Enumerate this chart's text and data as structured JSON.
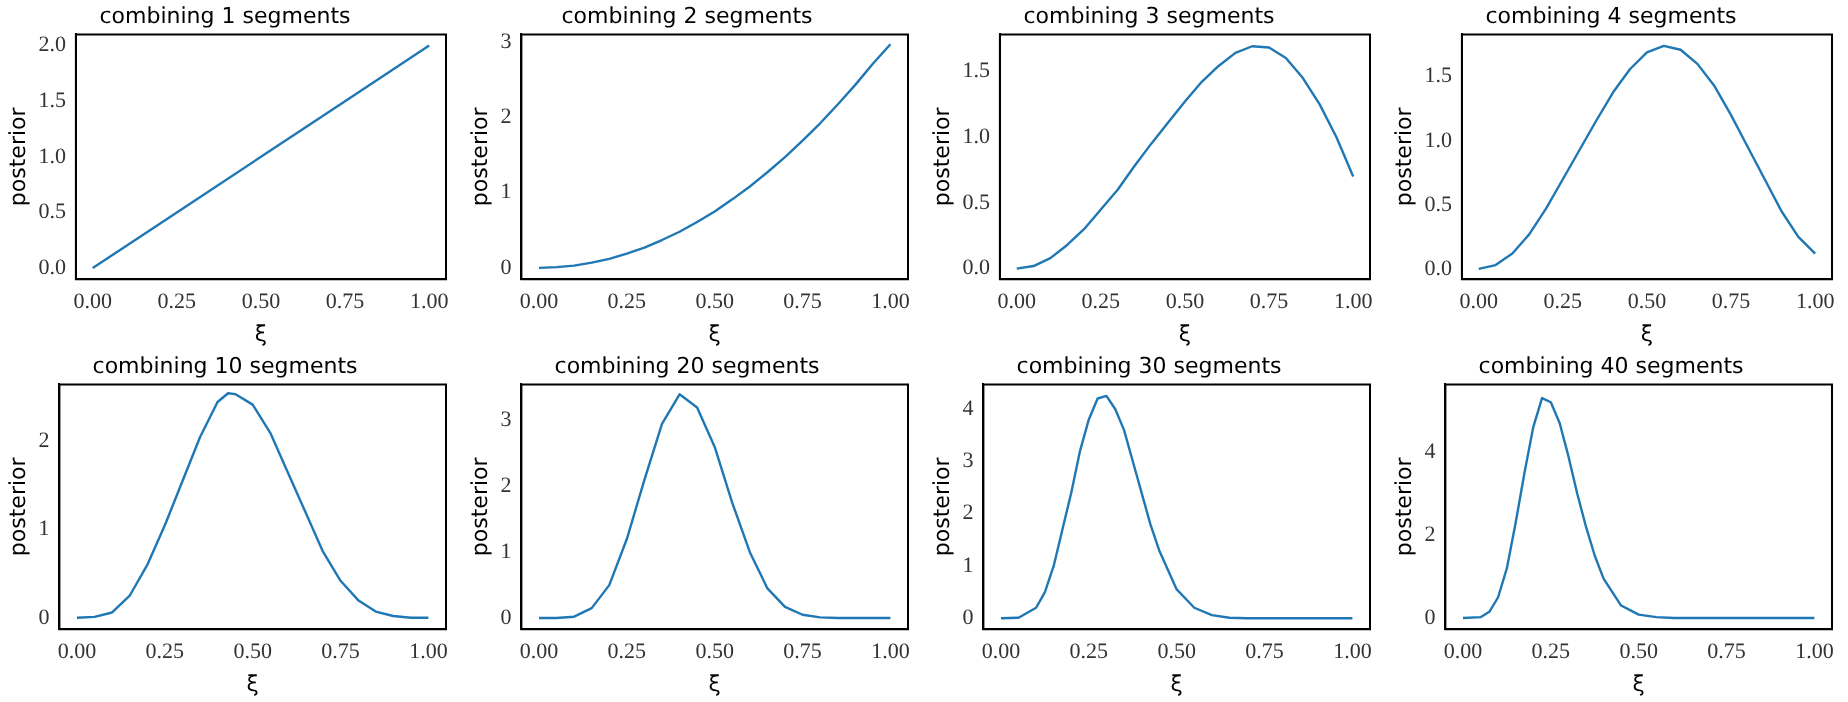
{
  "chart_data": [
    {
      "type": "line",
      "title": "combining 1 segments",
      "xlabel": "ξ",
      "ylabel": "posterior",
      "x": [
        0,
        0.25,
        0.5,
        0.75,
        1
      ],
      "series": [
        {
          "color": "#1f77b4",
          "values": [
            0,
            0.5,
            1.0,
            1.5,
            2.0
          ]
        }
      ],
      "xlim": [
        -0.05,
        1.05
      ],
      "ylim": [
        -0.1,
        2.1
      ],
      "xticks": [
        {
          "value": 0,
          "label": "0.00"
        },
        {
          "value": 0.25,
          "label": "0.25"
        },
        {
          "value": 0.5,
          "label": "0.50"
        },
        {
          "value": 0.75,
          "label": "0.75"
        },
        {
          "value": 1,
          "label": "1.00"
        }
      ],
      "yticks": [
        {
          "value": 0,
          "label": "0.0"
        },
        0.5,
        {
          "value": 1,
          "label": "1.0"
        },
        1.5,
        {
          "value": 2,
          "label": "2.0"
        }
      ],
      "grid": false,
      "legend": false,
      "marker": "none",
      "line_style": "solid"
    },
    {
      "type": "line",
      "title": "combining 2 segments",
      "xlabel": "ξ",
      "ylabel": "posterior",
      "x": [
        0,
        0.05,
        0.1,
        0.15,
        0.2,
        0.25,
        0.3,
        0.35,
        0.4,
        0.45,
        0.5,
        0.55,
        0.6,
        0.65,
        0.7,
        0.75,
        0.8,
        0.85,
        0.9,
        0.95,
        1
      ],
      "series": [
        {
          "color": "#1f77b4",
          "values": [
            0,
            0.01,
            0.03,
            0.07,
            0.12,
            0.19,
            0.27,
            0.37,
            0.48,
            0.61,
            0.75,
            0.91,
            1.08,
            1.27,
            1.47,
            1.69,
            1.92,
            2.17,
            2.43,
            2.71,
            2.97
          ]
        }
      ],
      "xlim": [
        -0.05,
        1.05
      ],
      "ylim": [
        -0.15,
        3.1
      ],
      "xticks": [
        {
          "value": 0,
          "label": "0.00"
        },
        {
          "value": 0.25,
          "label": "0.25"
        },
        {
          "value": 0.5,
          "label": "0.50"
        },
        {
          "value": 0.75,
          "label": "0.75"
        },
        {
          "value": 1,
          "label": "1.00"
        }
      ],
      "yticks": [
        0,
        1,
        2,
        3
      ],
      "grid": false,
      "legend": false,
      "marker": "none",
      "line_style": "solid"
    },
    {
      "type": "line",
      "title": "combining 3 segments",
      "xlabel": "ξ",
      "ylabel": "posterior",
      "x": [
        0,
        0.05,
        0.1,
        0.15,
        0.2,
        0.25,
        0.3,
        0.35,
        0.4,
        0.45,
        0.5,
        0.55,
        0.6,
        0.65,
        0.7,
        0.75,
        0.8,
        0.85,
        0.9,
        0.95,
        1
      ],
      "series": [
        {
          "color": "#1f77b4",
          "values": [
            0,
            0.02,
            0.08,
            0.18,
            0.3,
            0.45,
            0.6,
            0.78,
            0.95,
            1.11,
            1.27,
            1.42,
            1.54,
            1.64,
            1.69,
            1.68,
            1.6,
            1.45,
            1.25,
            1.0,
            0.7
          ]
        }
      ],
      "xlim": [
        -0.05,
        1.05
      ],
      "ylim": [
        -0.08,
        1.78
      ],
      "xticks": [
        {
          "value": 0,
          "label": "0.00"
        },
        {
          "value": 0.25,
          "label": "0.25"
        },
        {
          "value": 0.5,
          "label": "0.50"
        },
        {
          "value": 0.75,
          "label": "0.75"
        },
        {
          "value": 1,
          "label": "1.00"
        }
      ],
      "yticks": [
        {
          "value": 0,
          "label": "0.0"
        },
        0.5,
        {
          "value": 1,
          "label": "1.0"
        },
        1.5
      ],
      "grid": false,
      "legend": false,
      "marker": "none",
      "line_style": "solid"
    },
    {
      "type": "line",
      "title": "combining 4 segments",
      "xlabel": "ξ",
      "ylabel": "posterior",
      "x": [
        0,
        0.05,
        0.1,
        0.15,
        0.2,
        0.25,
        0.3,
        0.35,
        0.4,
        0.45,
        0.5,
        0.55,
        0.6,
        0.65,
        0.7,
        0.75,
        0.8,
        0.85,
        0.9,
        0.95,
        1
      ],
      "series": [
        {
          "color": "#1f77b4",
          "values": [
            0,
            0.03,
            0.12,
            0.27,
            0.47,
            0.7,
            0.93,
            1.16,
            1.38,
            1.56,
            1.69,
            1.74,
            1.71,
            1.6,
            1.43,
            1.2,
            0.95,
            0.7,
            0.45,
            0.25,
            0.12
          ]
        }
      ],
      "xlim": [
        -0.05,
        1.05
      ],
      "ylim": [
        -0.08,
        1.83
      ],
      "xticks": [
        {
          "value": 0,
          "label": "0.00"
        },
        {
          "value": 0.25,
          "label": "0.25"
        },
        {
          "value": 0.5,
          "label": "0.50"
        },
        {
          "value": 0.75,
          "label": "0.75"
        },
        {
          "value": 1,
          "label": "1.00"
        }
      ],
      "yticks": [
        {
          "value": 0,
          "label": "0.0"
        },
        0.5,
        {
          "value": 1,
          "label": "1.0"
        },
        1.5
      ],
      "grid": false,
      "legend": false,
      "marker": "none",
      "line_style": "solid"
    },
    {
      "type": "line",
      "title": "combining 10 segments",
      "xlabel": "ξ",
      "ylabel": "posterior",
      "x": [
        0,
        0.05,
        0.1,
        0.15,
        0.2,
        0.25,
        0.3,
        0.35,
        0.4,
        0.43,
        0.45,
        0.5,
        0.55,
        0.6,
        0.65,
        0.7,
        0.75,
        0.8,
        0.85,
        0.9,
        0.95,
        1
      ],
      "series": [
        {
          "color": "#1f77b4",
          "values": [
            0,
            0.01,
            0.06,
            0.25,
            0.6,
            1.05,
            1.55,
            2.05,
            2.45,
            2.55,
            2.54,
            2.42,
            2.1,
            1.65,
            1.2,
            0.75,
            0.42,
            0.2,
            0.07,
            0.02,
            0,
            0
          ]
        }
      ],
      "xlim": [
        -0.05,
        1.05
      ],
      "ylim": [
        -0.13,
        2.65
      ],
      "xticks": [
        {
          "value": 0,
          "label": "0.00"
        },
        {
          "value": 0.25,
          "label": "0.25"
        },
        {
          "value": 0.5,
          "label": "0.50"
        },
        {
          "value": 0.75,
          "label": "0.75"
        },
        {
          "value": 1,
          "label": "1.00"
        }
      ],
      "yticks": [
        0,
        1,
        2
      ],
      "grid": false,
      "legend": false,
      "marker": "none",
      "line_style": "solid"
    },
    {
      "type": "line",
      "title": "combining 20 segments",
      "xlabel": "ξ",
      "ylabel": "posterior",
      "x": [
        0,
        0.05,
        0.1,
        0.15,
        0.2,
        0.25,
        0.3,
        0.35,
        0.4,
        0.45,
        0.5,
        0.55,
        0.6,
        0.65,
        0.7,
        0.75,
        0.8,
        0.85,
        0.9,
        0.95,
        1
      ],
      "series": [
        {
          "color": "#1f77b4",
          "values": [
            0,
            0,
            0.02,
            0.15,
            0.5,
            1.2,
            2.1,
            2.95,
            3.4,
            3.2,
            2.6,
            1.75,
            1.0,
            0.45,
            0.17,
            0.05,
            0.01,
            0,
            0,
            0,
            0
          ]
        }
      ],
      "xlim": [
        -0.05,
        1.05
      ],
      "ylim": [
        -0.17,
        3.55
      ],
      "xticks": [
        {
          "value": 0,
          "label": "0.00"
        },
        {
          "value": 0.25,
          "label": "0.25"
        },
        {
          "value": 0.5,
          "label": "0.50"
        },
        {
          "value": 0.75,
          "label": "0.75"
        },
        {
          "value": 1,
          "label": "1.00"
        }
      ],
      "yticks": [
        0,
        1,
        2,
        3
      ],
      "grid": false,
      "legend": false,
      "marker": "none",
      "line_style": "solid"
    },
    {
      "type": "line",
      "title": "combining 30 segments",
      "xlabel": "ξ",
      "ylabel": "posterior",
      "x": [
        0,
        0.05,
        0.1,
        0.125,
        0.15,
        0.175,
        0.2,
        0.225,
        0.25,
        0.275,
        0.3,
        0.325,
        0.35,
        0.375,
        0.4,
        0.425,
        0.45,
        0.5,
        0.55,
        0.6,
        0.65,
        0.7,
        0.8,
        0.9,
        1
      ],
      "series": [
        {
          "color": "#1f77b4",
          "values": [
            0,
            0.01,
            0.2,
            0.5,
            1.0,
            1.7,
            2.4,
            3.2,
            3.8,
            4.2,
            4.25,
            4.0,
            3.6,
            3.0,
            2.4,
            1.8,
            1.3,
            0.55,
            0.2,
            0.06,
            0.01,
            0,
            0,
            0,
            0
          ]
        }
      ],
      "xlim": [
        -0.05,
        1.05
      ],
      "ylim": [
        -0.21,
        4.47
      ],
      "xticks": [
        {
          "value": 0,
          "label": "0.00"
        },
        {
          "value": 0.25,
          "label": "0.25"
        },
        {
          "value": 0.5,
          "label": "0.50"
        },
        {
          "value": 0.75,
          "label": "0.75"
        },
        {
          "value": 1,
          "label": "1.00"
        }
      ],
      "yticks": [
        0,
        1,
        2,
        3,
        4
      ],
      "grid": false,
      "legend": false,
      "marker": "none",
      "line_style": "solid"
    },
    {
      "type": "line",
      "title": "combining 40 segments",
      "xlabel": "ξ",
      "ylabel": "posterior",
      "x": [
        0,
        0.05,
        0.075,
        0.1,
        0.125,
        0.15,
        0.175,
        0.2,
        0.225,
        0.25,
        0.275,
        0.3,
        0.325,
        0.35,
        0.375,
        0.4,
        0.45,
        0.5,
        0.55,
        0.6,
        0.7,
        0.8,
        0.9,
        1
      ],
      "series": [
        {
          "color": "#1f77b4",
          "values": [
            0,
            0.02,
            0.15,
            0.5,
            1.2,
            2.3,
            3.5,
            4.6,
            5.3,
            5.2,
            4.7,
            3.9,
            3.0,
            2.2,
            1.5,
            0.95,
            0.3,
            0.08,
            0.02,
            0,
            0,
            0,
            0,
            0
          ]
        }
      ],
      "xlim": [
        -0.05,
        1.05
      ],
      "ylim": [
        -0.27,
        5.63
      ],
      "xticks": [
        {
          "value": 0,
          "label": "0.00"
        },
        {
          "value": 0.25,
          "label": "0.25"
        },
        {
          "value": 0.5,
          "label": "0.50"
        },
        {
          "value": 0.75,
          "label": "0.75"
        },
        {
          "value": 1,
          "label": "1.00"
        }
      ],
      "yticks": [
        0,
        2,
        4
      ],
      "grid": false,
      "legend": false,
      "marker": "none",
      "line_style": "solid"
    }
  ]
}
